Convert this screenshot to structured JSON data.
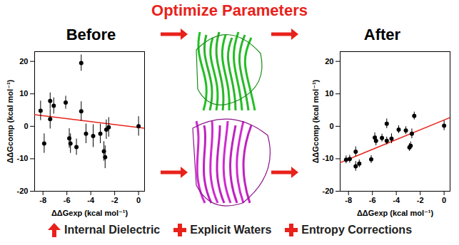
{
  "header": {
    "title": "Optimize Parameters"
  },
  "chart_data": [
    {
      "type": "scatter",
      "title": "Before",
      "xlabel": "ΔΔGexp (kcal mol⁻¹)",
      "ylabel": "ΔΔGcomp (kcal mol⁻¹)",
      "x": [
        -8.2,
        -7.9,
        -7.4,
        -7.4,
        -7.1,
        -6.1,
        -5.8,
        -5.7,
        -5.2,
        -4.8,
        -4.8,
        -4.4,
        -3.8,
        -3.2,
        -2.9,
        -2.8,
        -2.7,
        -2.5,
        0
      ],
      "values": [
        4.8,
        -5.3,
        7.8,
        2.2,
        6.3,
        7.3,
        -3.7,
        -5.3,
        -6.4,
        19.5,
        4.6,
        -2.3,
        -3.0,
        -2.3,
        -7.7,
        -9.5,
        -1.0,
        -0.3,
        0.0
      ],
      "errors": [
        3,
        3,
        2.5,
        3,
        2.5,
        2,
        3,
        3,
        2.5,
        2.5,
        3,
        3,
        3.5,
        3,
        3,
        3.5,
        3,
        3,
        3
      ],
      "color": "#000000",
      "trend_line": {
        "x": [
          -8.7,
          0.5
        ],
        "y": [
          3.6,
          -0.6
        ],
        "color": "#e8221b"
      },
      "xlim": [
        -8.7,
        0.5
      ],
      "ylim": [
        -20,
        23
      ],
      "xticks": [
        -8,
        -6,
        -4,
        -2,
        0
      ],
      "yticks": [
        -20,
        -10,
        0,
        10,
        20
      ]
    },
    {
      "type": "scatter",
      "title": "After",
      "xlabel": "ΔΔGexp (kcal mol⁻¹)",
      "ylabel": "ΔΔGcomp (kcal mol⁻¹)",
      "x": [
        -8.2,
        -7.9,
        -7.4,
        -7.4,
        -7.1,
        -6.1,
        -5.8,
        -5.7,
        -5.2,
        -4.8,
        -4.8,
        -4.4,
        -3.8,
        -3.2,
        -2.9,
        -2.8,
        -2.7,
        -2.5,
        0
      ],
      "values": [
        -10.3,
        -10.1,
        -7.8,
        -12.3,
        -11.5,
        -10.2,
        -3.5,
        -4.5,
        -3.6,
        0.8,
        -4.5,
        -3.8,
        -1.0,
        -1.3,
        -6.5,
        -6.0,
        -2.3,
        3.2,
        0.2
      ],
      "errors": [
        1.2,
        1.2,
        1.5,
        1.5,
        1.2,
        1.2,
        1.5,
        1.5,
        1.2,
        1.5,
        1.2,
        1.5,
        1.2,
        1.2,
        1.2,
        1.2,
        1.5,
        1.2,
        1.5
      ],
      "color": "#000000",
      "trend_line": {
        "x": [
          -8.7,
          0.5
        ],
        "y": [
          -11.2,
          2.7
        ],
        "color": "#e8221b"
      },
      "xlim": [
        -8.7,
        0.5
      ],
      "ylim": [
        -20,
        23
      ],
      "xticks": [
        -8,
        -6,
        -4,
        -2,
        0
      ],
      "yticks": [
        -20,
        -10,
        0,
        10,
        20
      ]
    }
  ],
  "footer": {
    "items": [
      {
        "text": "Internal Dielectric",
        "marker": "arrow",
        "color": "#e8221b"
      },
      {
        "text": "Explicit Waters",
        "marker": "plus",
        "color": "#e8221b"
      },
      {
        "text": "Entropy Corrections",
        "marker": "plus",
        "color": "#e8221b"
      }
    ]
  }
}
